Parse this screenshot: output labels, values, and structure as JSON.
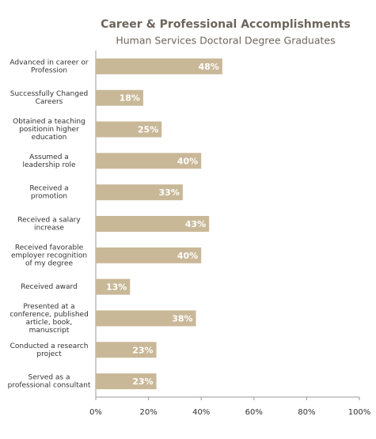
{
  "chart_data": {
    "type": "barh",
    "title": "Career & Professional Accomplishments",
    "subtitle": "Human Services Doctoral Degree Graduates",
    "categories": [
      [
        "Advanced in career or",
        "Profession"
      ],
      [
        "Successfully Changed",
        "Careers"
      ],
      [
        "Obtained a  teaching",
        "positionin higher",
        "education"
      ],
      [
        "Assumed a",
        "leadership role"
      ],
      [
        "Received a",
        "promotion"
      ],
      [
        "Received a salary",
        "increase"
      ],
      [
        "Received favorable",
        "employer recognition",
        "of my degree"
      ],
      [
        "Received award"
      ],
      [
        "Presented at a",
        "conference, published",
        "article, book,",
        "manuscript"
      ],
      [
        "Conducted a research",
        "project"
      ],
      [
        "Served as a",
        "professional consultant"
      ]
    ],
    "values": [
      48,
      18,
      25,
      40,
      33,
      43,
      40,
      13,
      38,
      23,
      23
    ],
    "value_labels": [
      "48%",
      "18%",
      "25%",
      "40%",
      "33%",
      "43%",
      "40%",
      "13%",
      "38%",
      "23%",
      "23%"
    ],
    "color": "#c9b898",
    "xlim": [
      0,
      100
    ],
    "xticks": [
      {
        "value": 0,
        "label": "0%"
      },
      {
        "value": 20,
        "label": "20%"
      },
      {
        "value": 40,
        "label": "40%"
      },
      {
        "value": 60,
        "label": "60%"
      },
      {
        "value": 80,
        "label": "80%"
      },
      {
        "value": 100,
        "label": "100%"
      }
    ],
    "grid": false
  }
}
